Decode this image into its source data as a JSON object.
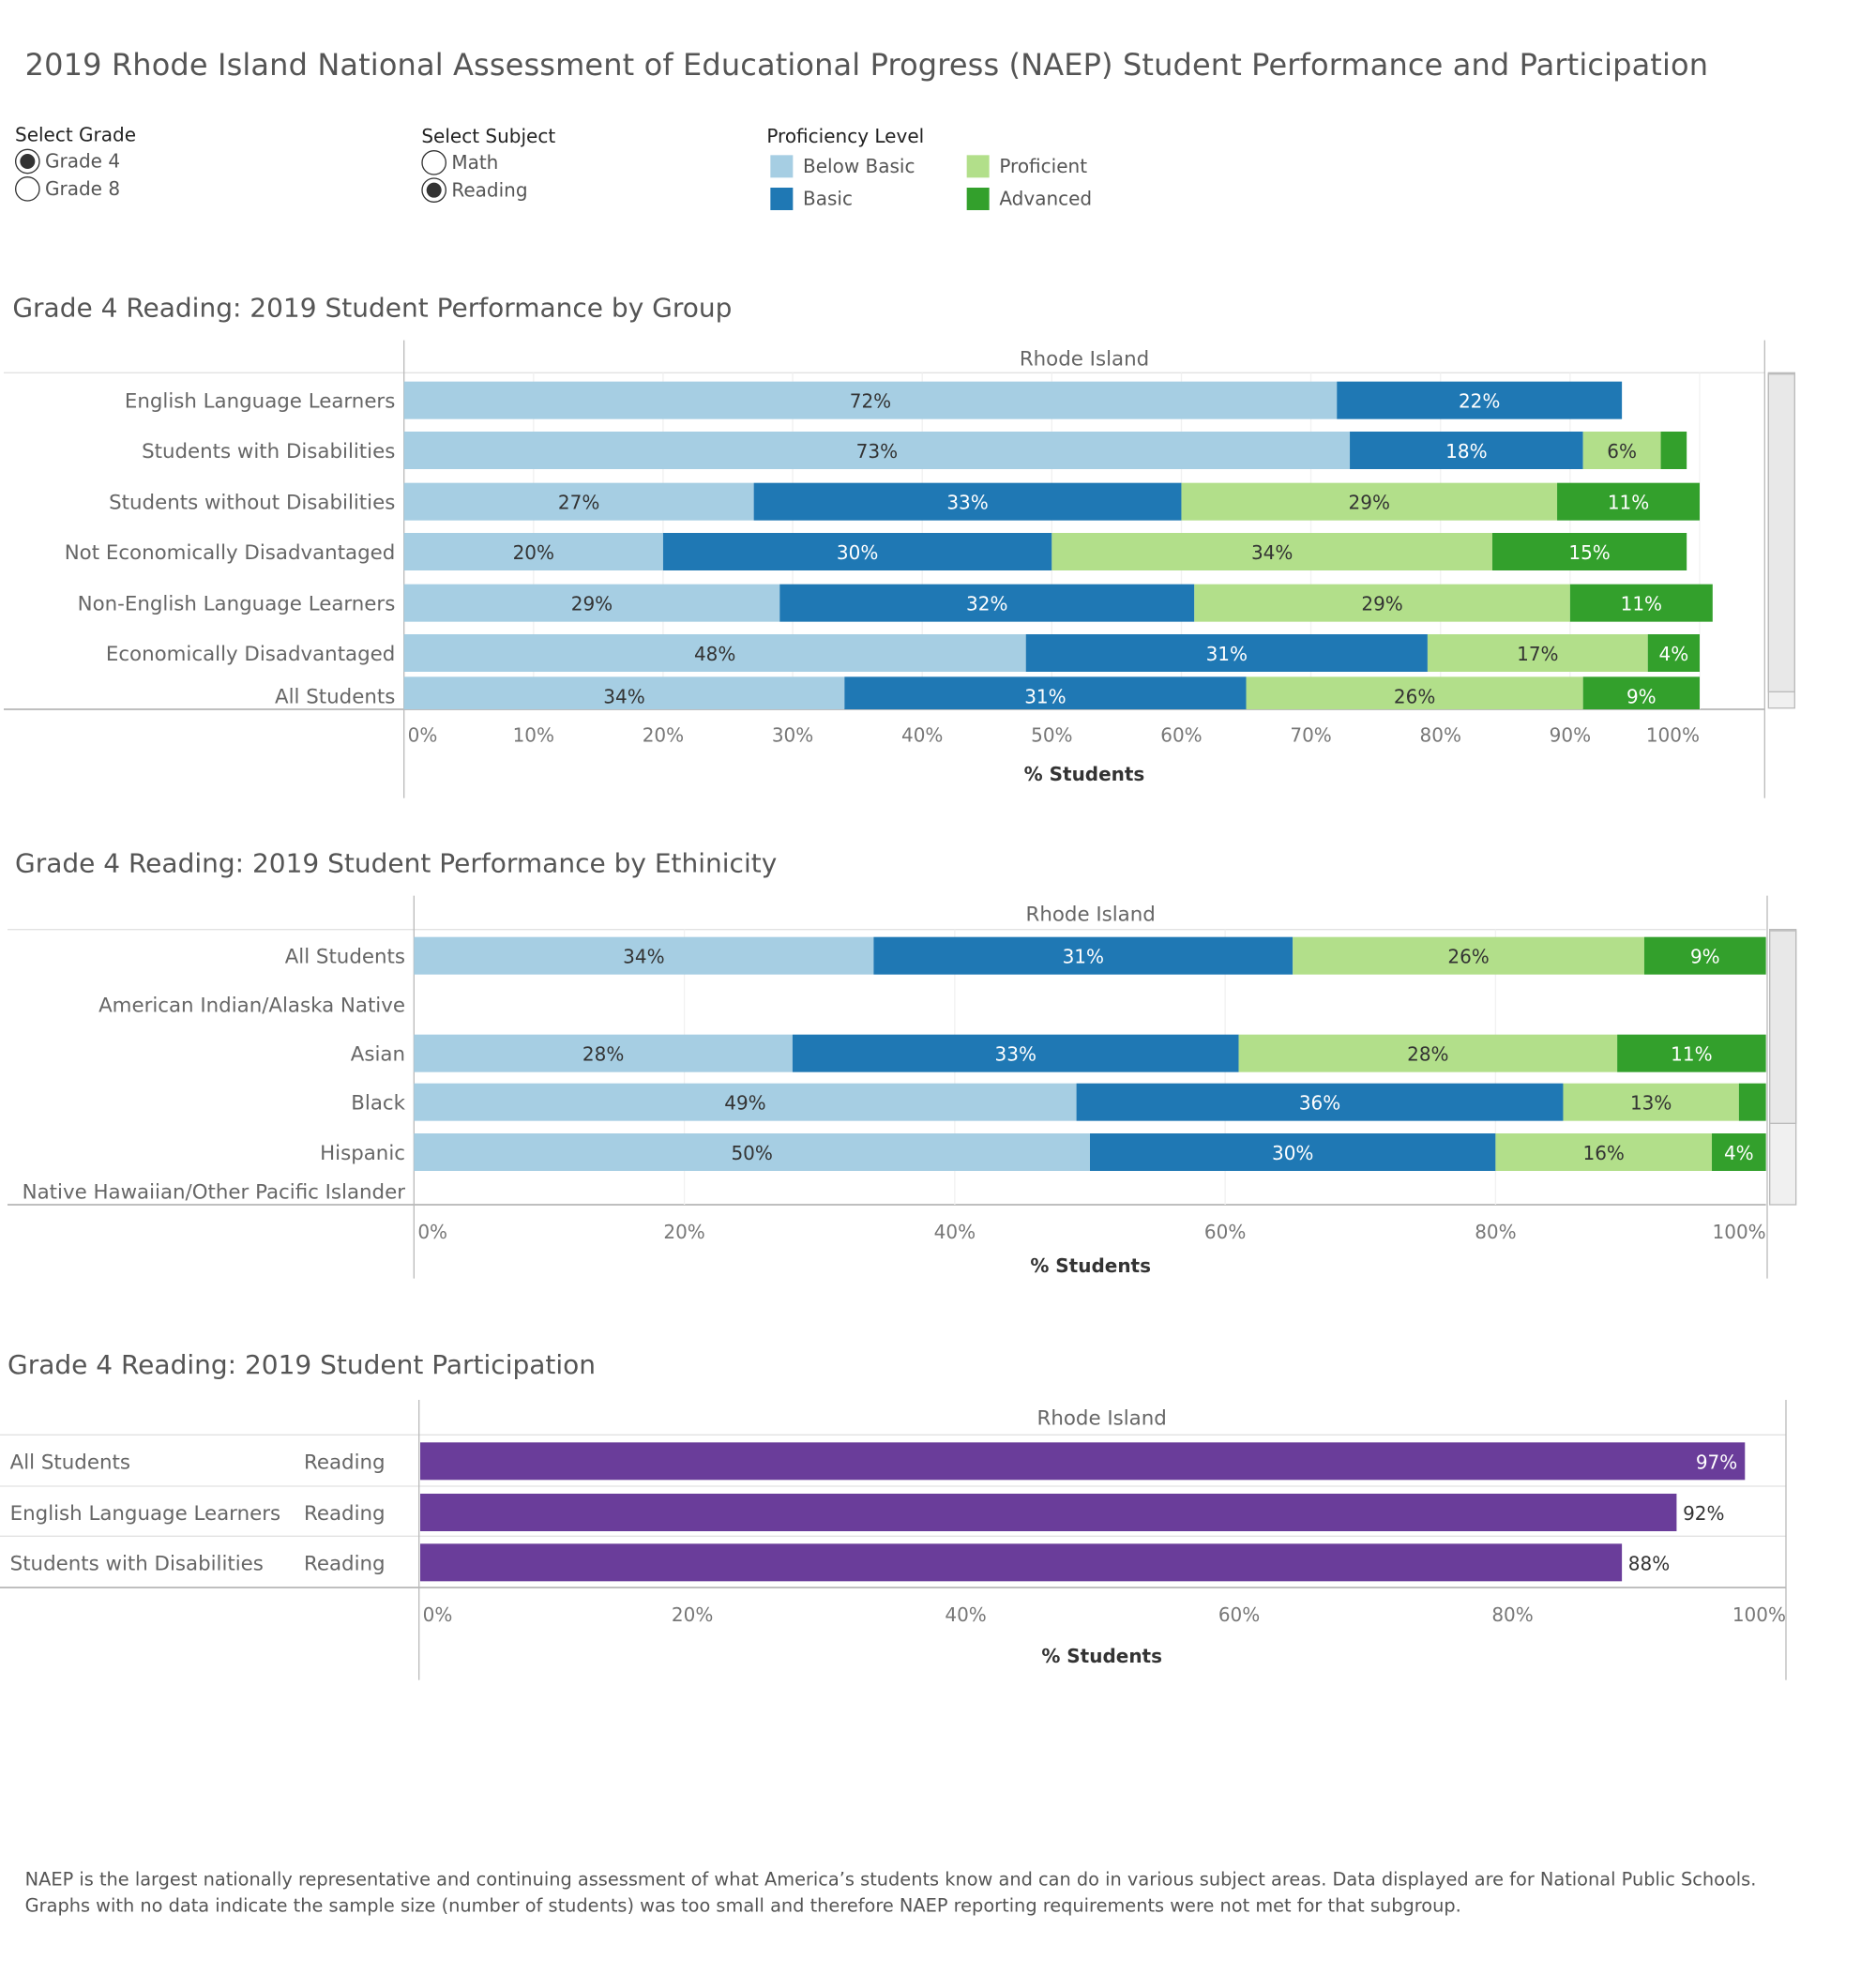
{
  "title": "2019 Rhode Island National Assessment of Educational Progress (NAEP) Student Performance and Participation",
  "controls": {
    "grade": {
      "label": "Select Grade",
      "options": [
        "Grade 4",
        "Grade 8"
      ],
      "selected": "Grade 4"
    },
    "subject": {
      "label": "Select Subject",
      "options": [
        "Math",
        "Reading"
      ],
      "selected": "Reading"
    }
  },
  "legend": {
    "title": "Proficiency Level",
    "items": [
      {
        "label": "Below Basic",
        "color": "#A6CEE3"
      },
      {
        "label": "Proficient",
        "color": "#B2DF8A"
      },
      {
        "label": "Basic",
        "color": "#1F78B4"
      },
      {
        "label": "Advanced",
        "color": "#33A02C"
      }
    ]
  },
  "sections": {
    "group": {
      "title": "Grade 4 Reading: 2019 Student Performance by Group"
    },
    "ethnicity": {
      "title": "Grade 4 Reading: 2019 Student Performance by Ethinicity"
    },
    "participation": {
      "title": "Grade 4 Reading: 2019 Student Participation"
    }
  },
  "footnote": [
    "NAEP is the largest nationally representative and continuing assessment of what America’s students know and can do in various subject areas. Data displayed are for National Public Schools.",
    "Graphs with no data indicate the sample size (number of students) was too small and therefore NAEP reporting requirements were not met for that subgroup."
  ],
  "chart_data": [
    {
      "type": "bar",
      "orientation": "horizontal",
      "stacked": true,
      "title": "Grade 4 Reading: 2019 Student Performance by Group",
      "header": "Rhode Island",
      "xlabel": "% Students",
      "xlim": [
        0,
        100
      ],
      "ticks": [
        "0%",
        "10%",
        "20%",
        "30%",
        "40%",
        "50%",
        "60%",
        "70%",
        "80%",
        "90%",
        "100%"
      ],
      "series_names": [
        "Below Basic",
        "Basic",
        "Proficient",
        "Advanced"
      ],
      "colors": [
        "#A6CEE3",
        "#1F78B4",
        "#B2DF8A",
        "#33A02C"
      ],
      "categories": [
        "English Language Learners",
        "Students with Disabilities",
        "Students without Disabilities",
        "Not Economically Disadvantaged",
        "Non-English Language Learners",
        "Economically Disadvantaged",
        "All Students"
      ],
      "values": [
        [
          72,
          22,
          0,
          0
        ],
        [
          73,
          18,
          6,
          2
        ],
        [
          27,
          33,
          29,
          11
        ],
        [
          20,
          30,
          34,
          15
        ],
        [
          29,
          32,
          29,
          11
        ],
        [
          48,
          31,
          17,
          4
        ],
        [
          34,
          31,
          26,
          9
        ]
      ],
      "labels": [
        [
          "72%",
          "22%",
          "",
          ""
        ],
        [
          "73%",
          "18%",
          "6%",
          ""
        ],
        [
          "27%",
          "33%",
          "29%",
          "11%"
        ],
        [
          "20%",
          "30%",
          "34%",
          "15%"
        ],
        [
          "29%",
          "32%",
          "29%",
          "11%"
        ],
        [
          "48%",
          "31%",
          "17%",
          "4%"
        ],
        [
          "34%",
          "31%",
          "26%",
          "9%"
        ]
      ]
    },
    {
      "type": "bar",
      "orientation": "horizontal",
      "stacked": true,
      "title": "Grade 4 Reading: 2019 Student Performance by Ethinicity",
      "header": "Rhode Island",
      "xlabel": "% Students",
      "xlim": [
        0,
        100
      ],
      "ticks": [
        "0%",
        "20%",
        "40%",
        "60%",
        "80%",
        "100%"
      ],
      "series_names": [
        "Below Basic",
        "Basic",
        "Proficient",
        "Advanced"
      ],
      "colors": [
        "#A6CEE3",
        "#1F78B4",
        "#B2DF8A",
        "#33A02C"
      ],
      "categories": [
        "All Students",
        "American Indian/Alaska Native",
        "Asian",
        "Black",
        "Hispanic",
        "Native Hawaiian/Other Pacific Islander"
      ],
      "values": [
        [
          34,
          31,
          26,
          9
        ],
        null,
        [
          28,
          33,
          28,
          11
        ],
        [
          49,
          36,
          13,
          2
        ],
        [
          50,
          30,
          16,
          4
        ],
        null
      ],
      "labels": [
        [
          "34%",
          "31%",
          "26%",
          "9%"
        ],
        null,
        [
          "28%",
          "33%",
          "28%",
          "11%"
        ],
        [
          "49%",
          "36%",
          "13%",
          ""
        ],
        [
          "50%",
          "30%",
          "16%",
          "4%"
        ],
        null
      ]
    },
    {
      "type": "bar",
      "orientation": "horizontal",
      "title": "Grade 4 Reading: 2019 Student Participation",
      "header": "Rhode Island",
      "xlabel": "% Students",
      "xlim": [
        0,
        100
      ],
      "ticks": [
        "0%",
        "20%",
        "40%",
        "60%",
        "80%",
        "100%"
      ],
      "color": "#6A3D9A",
      "categories": [
        "All Students",
        "English Language Learners",
        "Students with Disabilities"
      ],
      "subject": [
        "Reading",
        "Reading",
        "Reading"
      ],
      "values": [
        97,
        92,
        88
      ],
      "labels": [
        "97%",
        "92%",
        "88%"
      ]
    }
  ]
}
